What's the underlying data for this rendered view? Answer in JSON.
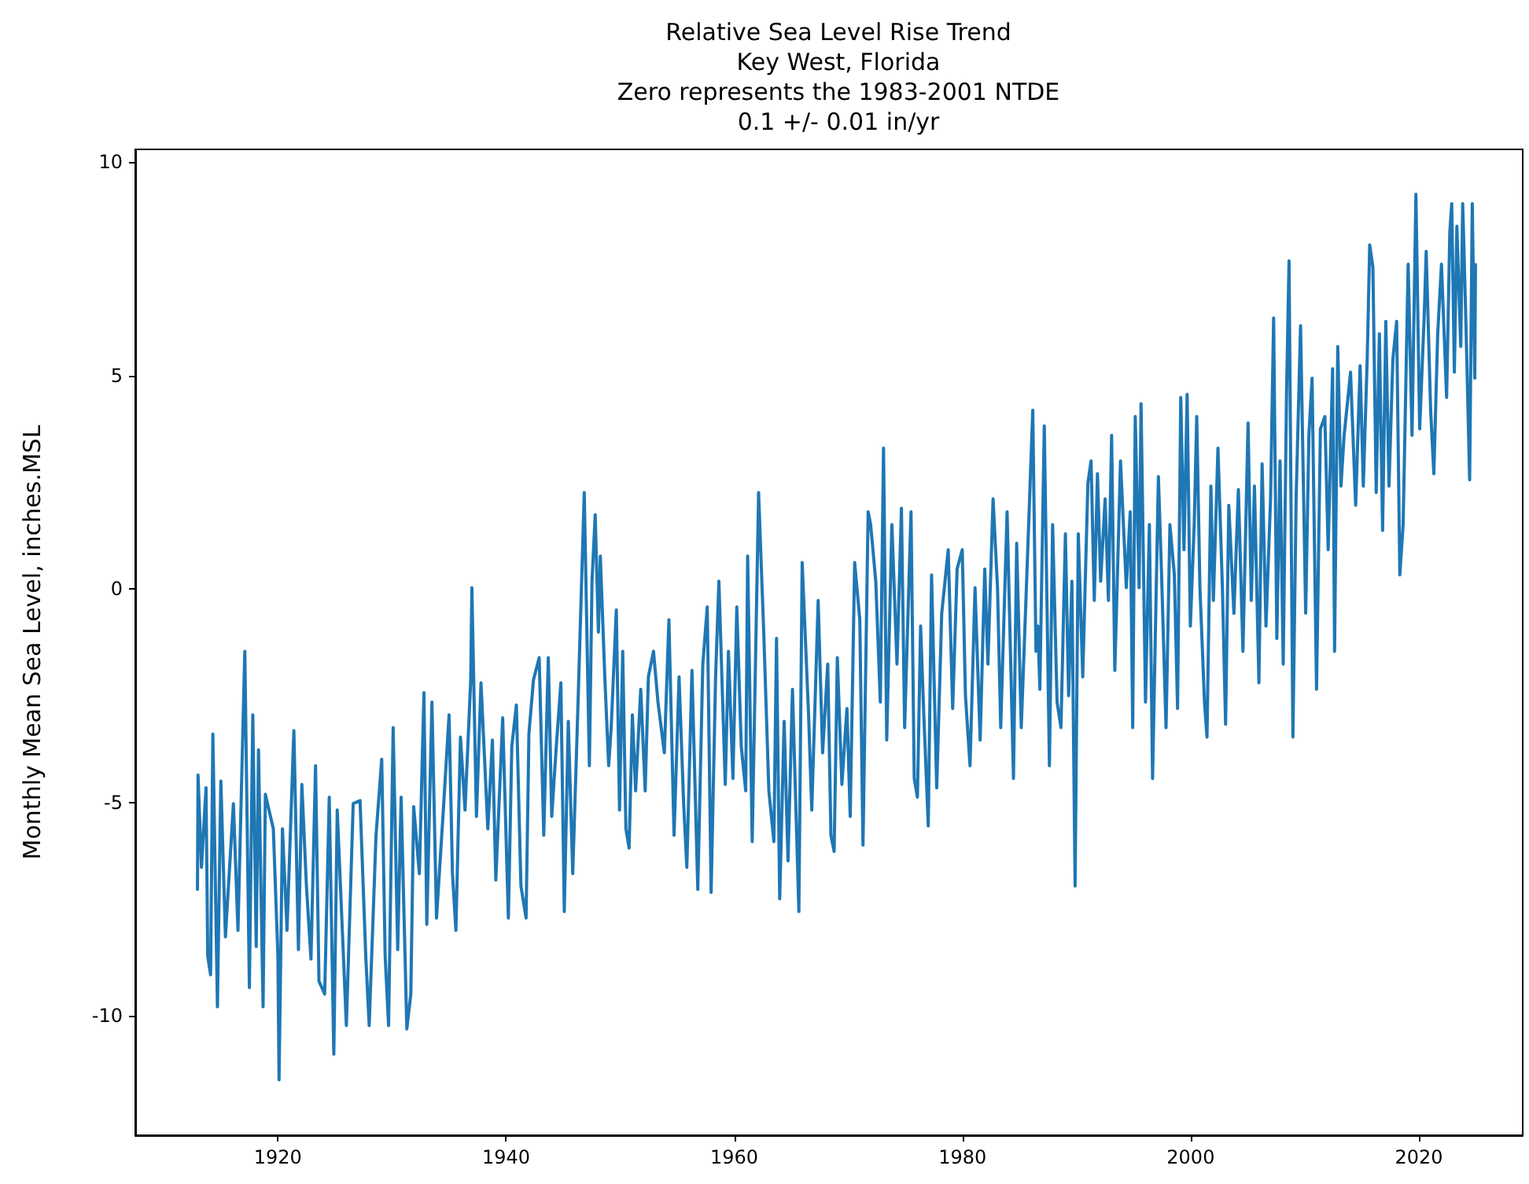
{
  "chart_data": {
    "type": "line",
    "title": "Relative Sea Level Rise Trend\nKey West, Florida\nZero represents the 1983-2001 NTDE\n0.1 +/- 0.01 in/yr",
    "ylabel": "Monthly Mean Sea Level, inches.MSL",
    "color": "#1f77b4",
    "grid": false,
    "marker": "none",
    "line_style": "solid",
    "xlim": [
      1907.5,
      2029.1
    ],
    "xticks": [
      1920,
      1940,
      1960,
      1980,
      2000,
      2020
    ],
    "ylim": [
      -12.8,
      10.3
    ],
    "yticks": [
      -10,
      -5,
      0,
      5,
      10
    ],
    "x": [
      1912.95,
      1913.0,
      1913.3,
      1913.7,
      1913.85,
      1914.1,
      1914.3,
      1914.7,
      1915.0,
      1915.4,
      1916.1,
      1916.5,
      1917.1,
      1917.5,
      1917.8,
      1918.1,
      1918.3,
      1918.7,
      1918.9,
      1919.6,
      1920.0,
      1920.1,
      1920.4,
      1920.8,
      1921.4,
      1921.8,
      1922.1,
      1922.5,
      1922.9,
      1923.3,
      1923.6,
      1924.1,
      1924.5,
      1924.9,
      1925.2,
      1926.0,
      1926.6,
      1927.2,
      1927.7,
      1928.0,
      1928.6,
      1929.1,
      1929.4,
      1929.7,
      1930.1,
      1930.5,
      1930.8,
      1931.3,
      1931.65,
      1931.9,
      1932.4,
      1932.8,
      1933.05,
      1933.5,
      1933.9,
      1934.5,
      1935.0,
      1935.3,
      1935.6,
      1936.0,
      1936.4,
      1936.9,
      1937.0,
      1937.4,
      1937.8,
      1938.4,
      1938.8,
      1939.1,
      1939.7,
      1940.2,
      1940.5,
      1940.9,
      1941.3,
      1941.75,
      1942.0,
      1942.4,
      1942.9,
      1943.3,
      1943.7,
      1944.0,
      1944.4,
      1944.8,
      1945.1,
      1945.45,
      1945.84,
      1946.29,
      1946.85,
      1947.3,
      1947.53,
      1947.81,
      1948.09,
      1948.26,
      1948.65,
      1948.99,
      1949.21,
      1949.66,
      1949.94,
      1950.22,
      1950.5,
      1950.78,
      1951.07,
      1951.35,
      1951.8,
      1952.19,
      1952.47,
      1952.92,
      1953.31,
      1953.87,
      1954.27,
      1954.72,
      1955.16,
      1955.56,
      1955.84,
      1956.29,
      1956.8,
      1957.24,
      1957.63,
      1957.97,
      1958.36,
      1958.65,
      1959.21,
      1959.49,
      1959.88,
      1960.22,
      1960.61,
      1961.0,
      1961.17,
      1961.57,
      1962.13,
      1962.58,
      1963.03,
      1963.47,
      1963.7,
      1963.98,
      1964.37,
      1964.71,
      1965.1,
      1965.66,
      1965.95,
      1966.51,
      1966.79,
      1967.35,
      1967.74,
      1968.19,
      1968.47,
      1968.75,
      1969.03,
      1969.43,
      1969.87,
      1970.16,
      1970.55,
      1971.0,
      1971.28,
      1971.73,
      1971.95,
      1972.4,
      1972.8,
      1973.08,
      1973.36,
      1973.81,
      1974.26,
      1974.65,
      1974.93,
      1975.49,
      1975.77,
      1976.05,
      1976.33,
      1976.61,
      1977.0,
      1977.29,
      1977.74,
      1978.18,
      1978.75,
      1979.14,
      1979.53,
      1979.98,
      1980.26,
      1980.66,
      1981.1,
      1981.55,
      1981.95,
      1982.23,
      1982.68,
      1983.07,
      1983.35,
      1983.91,
      1984.47,
      1984.75,
      1985.15,
      1985.6,
      1986.16,
      1986.44,
      1986.61,
      1986.78,
      1987.17,
      1987.62,
      1987.9,
      1988.29,
      1988.63,
      1989.02,
      1989.3,
      1989.59,
      1989.87,
      1990.15,
      1990.54,
      1990.99,
      1991.27,
      1991.55,
      1991.83,
      1992.11,
      1992.5,
      1992.79,
      1993.07,
      1993.35,
      1993.52,
      1993.85,
      1994.36,
      1994.7,
      1994.92,
      1995.14,
      1995.48,
      1995.65,
      1996.04,
      1996.38,
      1996.66,
      1997.17,
      1997.45,
      1997.84,
      1998.18,
      1998.57,
      1998.85,
      1999.13,
      1999.41,
      1999.69,
      1999.97,
      2000.31,
      2000.53,
      2000.81,
      2001.21,
      2001.43,
      2001.77,
      2001.99,
      2002.39,
      2002.78,
      2003.06,
      2003.34,
      2003.79,
      2004.18,
      2004.58,
      2005.03,
      2005.31,
      2005.59,
      2005.98,
      2006.26,
      2006.6,
      2007.0,
      2007.27,
      2007.55,
      2007.83,
      2008.11,
      2008.4,
      2008.62,
      2008.96,
      2009.24,
      2009.63,
      2010.08,
      2010.36,
      2010.64,
      2011.03,
      2011.37,
      2011.76,
      2012.05,
      2012.44,
      2012.61,
      2012.89,
      2013.17,
      2013.45,
      2014.01,
      2014.46,
      2014.85,
      2015.13,
      2015.47,
      2015.69,
      2015.97,
      2016.26,
      2016.54,
      2016.82,
      2017.1,
      2017.38,
      2017.72,
      2018.05,
      2018.33,
      2018.62,
      2019.06,
      2019.4,
      2019.74,
      2020.07,
      2020.47,
      2020.64,
      2021.03,
      2021.31,
      2021.65,
      2021.98,
      2022.43,
      2022.71,
      2022.88,
      2023.11,
      2023.33,
      2023.67,
      2023.84,
      2024.12,
      2024.45,
      2024.68,
      2024.9,
      2024.96
    ],
    "values": [
      -7.04,
      -4.36,
      -6.52,
      -4.66,
      -8.6,
      -9.04,
      -3.4,
      -9.79,
      -4.5,
      -8.15,
      -5.03,
      -8.0,
      -1.46,
      -9.34,
      -2.95,
      -8.38,
      -3.77,
      -9.79,
      -4.81,
      -5.62,
      -8.6,
      -11.5,
      -5.62,
      -8.0,
      -3.32,
      -8.45,
      -4.58,
      -6.96,
      -8.67,
      -4.14,
      -9.19,
      -9.49,
      -4.88,
      -10.9,
      -5.18,
      -10.23,
      -5.03,
      -4.96,
      -8.6,
      -10.23,
      -5.77,
      -3.99,
      -8.6,
      -10.23,
      -3.25,
      -8.45,
      -4.88,
      -10.31,
      -9.49,
      -5.1,
      -6.67,
      -2.43,
      -7.86,
      -2.65,
      -7.71,
      -5.18,
      -2.95,
      -6.67,
      -8.0,
      -3.47,
      -5.18,
      -2.13,
      0.03,
      -5.33,
      -2.2,
      -5.62,
      -3.54,
      -6.82,
      -3.02,
      -7.71,
      -3.69,
      -2.72,
      -6.96,
      -7.71,
      -3.39,
      -2.13,
      -1.61,
      -5.77,
      -1.61,
      -5.33,
      -3.69,
      -2.2,
      -7.56,
      -3.1,
      -6.67,
      -2.8,
      2.26,
      -4.14,
      0.18,
      1.74,
      -1.01,
      0.77,
      -2.06,
      -4.14,
      -3.25,
      -0.49,
      -5.18,
      -1.46,
      -5.62,
      -6.07,
      -2.95,
      -4.73,
      -2.35,
      -4.73,
      -2.06,
      -1.46,
      -2.65,
      -3.84,
      -0.72,
      -5.77,
      -2.06,
      -5.03,
      -6.52,
      -1.91,
      -7.04,
      -1.76,
      -0.42,
      -7.11,
      -2.06,
      0.18,
      -4.58,
      -1.46,
      -4.44,
      -0.42,
      -3.69,
      -4.73,
      0.77,
      -5.92,
      2.26,
      -1.01,
      -4.73,
      -5.92,
      -1.16,
      -7.26,
      -3.1,
      -6.37,
      -2.35,
      -7.56,
      0.62,
      -2.95,
      -5.18,
      -0.27,
      -3.84,
      -1.76,
      -5.77,
      -6.15,
      -1.61,
      -4.58,
      -2.8,
      -5.33,
      0.62,
      -0.72,
      -6.0,
      1.81,
      1.51,
      0.18,
      -2.65,
      3.3,
      -3.54,
      1.51,
      -1.76,
      1.89,
      -3.25,
      1.81,
      -4.44,
      -4.88,
      -0.87,
      -2.95,
      -5.55,
      0.33,
      -4.66,
      -0.57,
      0.92,
      -2.8,
      0.47,
      0.92,
      -2.5,
      -4.14,
      0.03,
      -3.54,
      0.47,
      -1.76,
      2.11,
      0.03,
      -3.25,
      1.81,
      -4.44,
      1.07,
      -3.25,
      0.03,
      4.19,
      -1.46,
      -0.87,
      -2.35,
      3.82,
      -4.14,
      1.51,
      -2.65,
      -3.25,
      1.29,
      -2.5,
      0.18,
      -6.96,
      1.29,
      -2.06,
      2.48,
      3.0,
      -0.27,
      2.7,
      0.18,
      2.11,
      -0.27,
      3.6,
      -1.91,
      -0.27,
      3.0,
      0.03,
      1.81,
      -3.25,
      4.04,
      0.03,
      4.34,
      -2.65,
      1.51,
      -4.44,
      2.63,
      0.33,
      -3.25,
      1.51,
      0.33,
      -2.8,
      4.49,
      0.92,
      4.56,
      -0.87,
      1.51,
      4.04,
      0.03,
      -2.65,
      -3.47,
      2.41,
      -0.27,
      3.3,
      0.03,
      -3.17,
      1.96,
      -0.57,
      2.33,
      -1.46,
      3.89,
      -0.27,
      2.41,
      -2.2,
      2.93,
      -0.87,
      2.11,
      6.35,
      -1.16,
      3.0,
      -1.76,
      4.56,
      7.69,
      -3.47,
      2.11,
      6.17,
      -0.57,
      3.6,
      4.94,
      -2.35,
      3.75,
      4.04,
      0.92,
      5.16,
      -1.46,
      5.68,
      2.41,
      3.6,
      5.08,
      1.96,
      5.23,
      2.41,
      5.38,
      8.06,
      7.54,
      2.26,
      5.98,
      1.37,
      6.27,
      2.41,
      5.38,
      6.27,
      0.33,
      1.51,
      7.61,
      3.6,
      9.25,
      3.75,
      6.42,
      7.91,
      4.19,
      2.7,
      5.98,
      7.61,
      4.49,
      8.36,
      9.03,
      5.08,
      8.5,
      5.68,
      9.03,
      6.27,
      2.56,
      9.03,
      4.94,
      7.6
    ]
  }
}
